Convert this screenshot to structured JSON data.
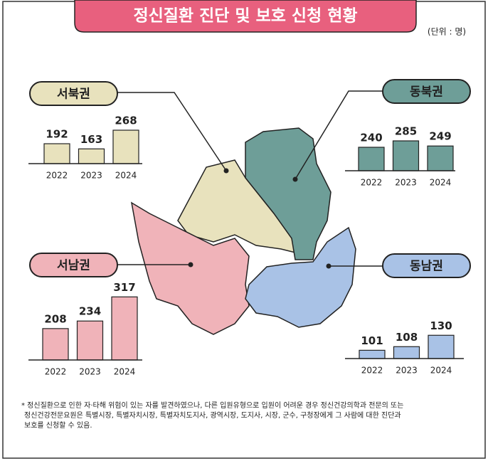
{
  "title": "정신질환 진단 및 보호 신청 현황",
  "unit": "(단위 : 명)",
  "note": [
    "* 정신질환으로 인한 자·타해 위험이 있는 자를 발견하였으나, 다른 입원유형으로 입원이 어려운 경우 정신건강의학과 전문의 또는",
    "정신건강전문요원은 특별시장, 특별자치시장, 특별자치도지사, 광역시장, 도지사, 시장, 군수, 구청장에게 그 사람에 대한 진단과",
    "보호를 신청할 수 있음."
  ],
  "chart_data": [
    {
      "type": "bar",
      "title": "서북권",
      "categories": [
        "2022",
        "2023",
        "2024"
      ],
      "values": [
        192,
        163,
        268
      ],
      "color": "#e8e2bd",
      "ylim": [
        80,
        300
      ]
    },
    {
      "type": "bar",
      "title": "동북권",
      "categories": [
        "2022",
        "2023",
        "2024"
      ],
      "values": [
        240,
        285,
        249
      ],
      "color": "#6e9e98",
      "ylim": [
        75,
        350
      ]
    },
    {
      "type": "bar",
      "title": "서남권",
      "categories": [
        "2022",
        "2023",
        "2024"
      ],
      "values": [
        208,
        234,
        317
      ],
      "color": "#f0b3b9",
      "ylim": [
        100,
        330
      ]
    },
    {
      "type": "bar",
      "title": "동남권",
      "categories": [
        "2022",
        "2023",
        "2024"
      ],
      "values": [
        101,
        108,
        130
      ],
      "color": "#a9c2e6",
      "ylim": [
        85,
        140
      ]
    }
  ]
}
